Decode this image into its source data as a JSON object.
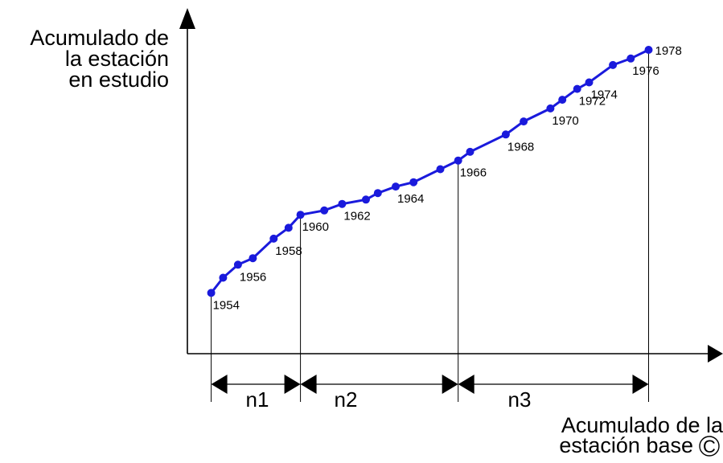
{
  "y_label_lines": [
    "Acumulado de",
    "la estación",
    "en estudio"
  ],
  "x_label_lines": [
    "Acumulado de la",
    "estación base"
  ],
  "x_label_circle": "C",
  "year_labels": [
    "1954",
    "1956",
    "1958",
    "1960",
    "1962",
    "1964",
    "1966",
    "1968",
    "1970",
    "1972",
    "1974",
    "1976",
    "1978"
  ],
  "segment_labels": [
    "n1",
    "n2",
    "n3"
  ],
  "curve_color": "#1a1adc",
  "chart_data": {
    "type": "line",
    "title": "",
    "series": [
      {
        "x": [
          0.8,
          1.2,
          1.7,
          2.2,
          2.9,
          3.4,
          3.8,
          4.6,
          5.2,
          6.0,
          6.4,
          7.0,
          7.6,
          8.5,
          9.1,
          9.5,
          10.7,
          11.3,
          12.2,
          12.6,
          13.1,
          13.5,
          14.3,
          14.9,
          15.5
        ],
        "y": [
          2.8,
          3.5,
          4.1,
          4.4,
          5.3,
          5.8,
          6.4,
          6.6,
          6.9,
          7.1,
          7.4,
          7.7,
          7.9,
          8.5,
          8.9,
          9.3,
          10.1,
          10.7,
          11.3,
          11.7,
          12.2,
          12.5,
          13.3,
          13.6,
          14.0
        ]
      }
    ]
  }
}
